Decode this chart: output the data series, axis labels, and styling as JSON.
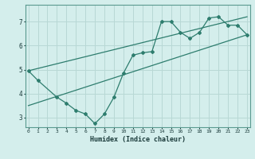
{
  "xlabel": "Humidex (Indice chaleur)",
  "bg_color": "#d4eeec",
  "line_color": "#2e7d6e",
  "grid_color": "#b8d8d5",
  "main_line_x": [
    0,
    1,
    3,
    4,
    5,
    6,
    7,
    8,
    9,
    10,
    11,
    12,
    13,
    14,
    15,
    16,
    17,
    18,
    19,
    20,
    21,
    22,
    23
  ],
  "main_line_y": [
    4.95,
    4.55,
    3.85,
    3.6,
    3.3,
    3.15,
    2.75,
    3.15,
    3.85,
    4.85,
    5.6,
    5.7,
    5.75,
    7.0,
    7.0,
    6.55,
    6.3,
    6.55,
    7.15,
    7.2,
    6.85,
    6.85,
    6.45
  ],
  "upper_line_x": [
    0,
    23
  ],
  "upper_line_y": [
    4.95,
    7.2
  ],
  "lower_line_x": [
    0,
    23
  ],
  "lower_line_y": [
    3.5,
    6.45
  ],
  "xlim": [
    -0.3,
    23.3
  ],
  "ylim": [
    2.6,
    7.7
  ],
  "xticks": [
    0,
    1,
    2,
    3,
    4,
    5,
    6,
    7,
    8,
    9,
    10,
    11,
    12,
    13,
    14,
    15,
    16,
    17,
    18,
    19,
    20,
    21,
    22,
    23
  ],
  "yticks": [
    3,
    4,
    5,
    6,
    7
  ]
}
